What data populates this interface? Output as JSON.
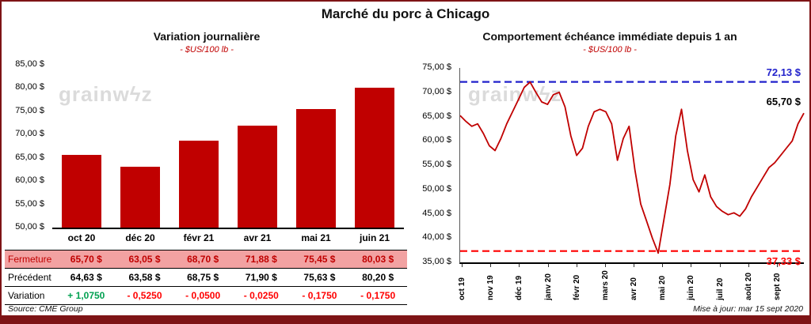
{
  "page": {
    "title": "Marché du porc à Chicago",
    "source": "Source: CME Group",
    "updated": "Mise à jour: mar 15 sept 2020",
    "watermark": "grainwiz"
  },
  "colors": {
    "frame": "#7E1416",
    "bar": "#C00000",
    "line": "#C00000",
    "high_line": "#2222CC",
    "low_line": "#FF0000",
    "closing_row_bg": "#F2A2A2",
    "closing_row_text": "#C00000",
    "gain": "#00A050",
    "loss": "#FF0000",
    "subtitle": "#C00000",
    "watermark": "#DBDBDB"
  },
  "chart_data": [
    {
      "type": "bar",
      "title": "Variation  journalière",
      "subtitle": "- $US/100 lb -",
      "categories": [
        "oct 20",
        "déc 20",
        "févr 21",
        "avr 21",
        "mai 21",
        "juin 21"
      ],
      "values": [
        65.7,
        63.05,
        68.7,
        71.88,
        75.45,
        80.03
      ],
      "ylim": [
        50,
        85
      ],
      "yticks": [
        85,
        80,
        75,
        70,
        65,
        60,
        55,
        50
      ],
      "ytick_labels": [
        "85,00 $",
        "80,00 $",
        "75,00 $",
        "70,00 $",
        "65,00 $",
        "60,00 $",
        "55,00 $",
        "50,00 $"
      ],
      "bar_color": "#C00000",
      "grid": false,
      "legend": false
    },
    {
      "type": "line",
      "title": "Comportement  échéance immédiate depuis 1 an",
      "subtitle": "- $US/100 lb -",
      "x_labels": [
        "oct 19",
        "nov 19",
        "déc 19",
        "janv 20",
        "févr 20",
        "mars 20",
        "avr 20",
        "mai 20",
        "juin 20",
        "juil 20",
        "août 20",
        "sept 20"
      ],
      "values": [
        65.2,
        64.0,
        63.0,
        63.5,
        61.5,
        59.0,
        58.0,
        60.5,
        63.5,
        66.0,
        68.5,
        71.0,
        72.1,
        70.0,
        68.0,
        67.5,
        69.5,
        70.0,
        67.0,
        61.0,
        57.0,
        58.5,
        63.0,
        66.0,
        66.5,
        66.0,
        63.5,
        56.0,
        60.5,
        63.0,
        54.0,
        47.0,
        43.5,
        40.0,
        36.9,
        44.0,
        51.0,
        61.0,
        66.5,
        58.0,
        52.0,
        49.5,
        53.0,
        48.5,
        46.5,
        45.5,
        44.8,
        45.2,
        44.5,
        46.0,
        48.5,
        50.5,
        52.5,
        54.5,
        55.5,
        57.0,
        58.5,
        60.0,
        63.5,
        65.7
      ],
      "ylim": [
        35,
        75
      ],
      "yticks": [
        75,
        70,
        65,
        60,
        55,
        50,
        45,
        40,
        35
      ],
      "ytick_labels": [
        "75,00 $",
        "70,00 $",
        "65,00 $",
        "60,00 $",
        "55,00 $",
        "50,00 $",
        "45,00 $",
        "40,00 $",
        "35,00 $"
      ],
      "line_color": "#C00000",
      "hlines": [
        {
          "value": 72.13,
          "label": "72,13 $",
          "color": "#2222CC",
          "style": "dashed",
          "label_position": "above"
        },
        {
          "value": 37.33,
          "label": "37,33 $",
          "color": "#FF0000",
          "style": "dashed",
          "label_position": "below"
        }
      ],
      "end_label": {
        "text": "65,70 $",
        "value": 65.7
      },
      "grid": false,
      "legend": false
    }
  ],
  "table": {
    "rows": [
      {
        "label": "Fermeture",
        "row_style": "closing",
        "values": [
          "65,70  $",
          "63,05  $",
          "68,70  $",
          "71,88  $",
          "75,45  $",
          "80,03  $"
        ]
      },
      {
        "label": "Précédent",
        "row_style": "previous",
        "values": [
          "64,63  $",
          "63,58  $",
          "68,75  $",
          "71,90  $",
          "75,63  $",
          "80,20  $"
        ]
      },
      {
        "label": "Variation",
        "row_style": "variation",
        "values": [
          "+ 1,0750",
          "- 0,5250",
          "- 0,0500",
          "- 0,0250",
          "- 0,1750",
          "- 0,1750"
        ],
        "value_styles": [
          "gain",
          "loss",
          "loss",
          "loss",
          "loss",
          "loss"
        ]
      }
    ]
  }
}
